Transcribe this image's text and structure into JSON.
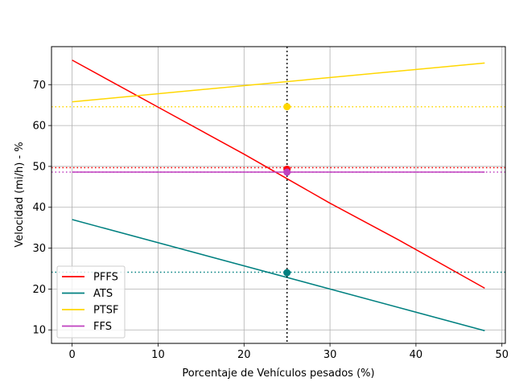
{
  "chart_data": {
    "type": "line",
    "title": "",
    "xlabel": "Porcentaje de Vehículos pesados (%)",
    "ylabel": "Velocidad (mi/h) - %",
    "xlim": [
      -2.4,
      50.4
    ],
    "ylim": [
      6.7,
      79.3
    ],
    "xticks": [
      0,
      10,
      20,
      30,
      40,
      50
    ],
    "yticks": [
      10,
      20,
      30,
      40,
      50,
      60,
      70
    ],
    "grid": true,
    "legend_position": "lower-left",
    "vertical_marker": {
      "x": 25,
      "color": "#000000"
    },
    "series": [
      {
        "name": "PFFS",
        "color": "#ff0000",
        "x": [
          0,
          10,
          20,
          25,
          30,
          38,
          48
        ],
        "y": [
          76.0,
          64.5,
          53.0,
          47.0,
          41.0,
          32.0,
          20.2
        ],
        "marker_y": 49.3,
        "hline_y": 49.7
      },
      {
        "name": "ATS",
        "color": "#008080",
        "x": [
          0,
          48
        ],
        "y": [
          37.0,
          9.8
        ],
        "marker_y": 24.0,
        "hline_y": 24.1
      },
      {
        "name": "PTSF",
        "color": "#ffd700",
        "x": [
          0,
          48
        ],
        "y": [
          65.8,
          75.3
        ],
        "marker_y": 64.6,
        "hline_y": 64.6
      },
      {
        "name": "FFS",
        "color": "#bf40bf",
        "x": [
          0,
          48
        ],
        "y": [
          48.6,
          48.6
        ],
        "marker_y": 48.6,
        "hline_y": 48.6
      }
    ]
  }
}
